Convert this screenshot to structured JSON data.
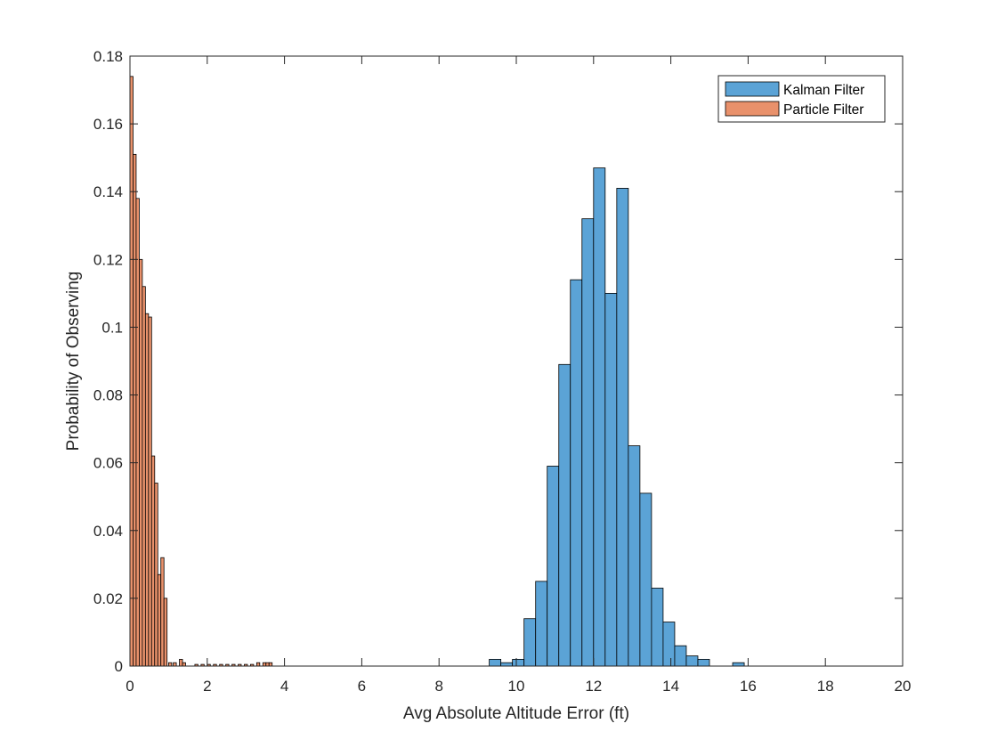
{
  "chart_data": {
    "type": "bar",
    "title": "",
    "xlabel": "Avg Absolute Altitude Error (ft)",
    "ylabel": "Probability of Observing",
    "xlim": [
      0,
      20
    ],
    "ylim": [
      0,
      0.18
    ],
    "xticks": [
      "0",
      "2",
      "4",
      "6",
      "8",
      "10",
      "12",
      "14",
      "16",
      "18",
      "20"
    ],
    "yticks": [
      "0",
      "0.02",
      "0.04",
      "0.06",
      "0.08",
      "0.1",
      "0.12",
      "0.14",
      "0.16",
      "0.18"
    ],
    "grid": false,
    "legend_position": "top-right",
    "series": [
      {
        "name": "Kalman Filter",
        "color": "#5BA3D6",
        "bin_width": 0.3,
        "bins": [
          [
            9.3,
            0.002
          ],
          [
            9.6,
            0.001
          ],
          [
            9.9,
            0.002
          ],
          [
            10.2,
            0.014
          ],
          [
            10.5,
            0.025
          ],
          [
            10.8,
            0.059
          ],
          [
            11.1,
            0.089
          ],
          [
            11.4,
            0.114
          ],
          [
            11.7,
            0.132
          ],
          [
            12.0,
            0.147
          ],
          [
            12.3,
            0.11
          ],
          [
            12.6,
            0.141
          ],
          [
            12.9,
            0.065
          ],
          [
            13.2,
            0.051
          ],
          [
            13.5,
            0.023
          ],
          [
            13.8,
            0.013
          ],
          [
            14.1,
            0.006
          ],
          [
            14.4,
            0.003
          ],
          [
            14.7,
            0.002
          ],
          [
            15.6,
            0.001
          ]
        ]
      },
      {
        "name": "Particle Filter",
        "color": "#E9916B",
        "bin_width": 0.08,
        "bins": [
          [
            0.0,
            0.174
          ],
          [
            0.08,
            0.151
          ],
          [
            0.16,
            0.138
          ],
          [
            0.24,
            0.12
          ],
          [
            0.32,
            0.112
          ],
          [
            0.4,
            0.104
          ],
          [
            0.48,
            0.103
          ],
          [
            0.56,
            0.062
          ],
          [
            0.64,
            0.054
          ],
          [
            0.72,
            0.027
          ],
          [
            0.8,
            0.032
          ],
          [
            0.88,
            0.02
          ],
          [
            1.0,
            0.001
          ],
          [
            1.12,
            0.001
          ],
          [
            1.28,
            0.002
          ],
          [
            1.36,
            0.001
          ],
          [
            1.68,
            0.0005
          ],
          [
            1.84,
            0.0005
          ],
          [
            2.0,
            0.0005
          ],
          [
            2.16,
            0.0005
          ],
          [
            2.32,
            0.0005
          ],
          [
            2.48,
            0.0005
          ],
          [
            2.64,
            0.0005
          ],
          [
            2.8,
            0.0005
          ],
          [
            2.96,
            0.0005
          ],
          [
            3.12,
            0.0005
          ],
          [
            3.28,
            0.001
          ],
          [
            3.44,
            0.001
          ],
          [
            3.52,
            0.001
          ],
          [
            3.6,
            0.001
          ]
        ]
      }
    ]
  }
}
